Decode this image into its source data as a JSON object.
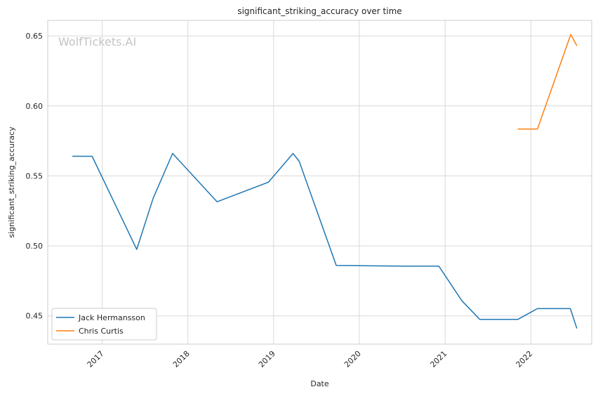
{
  "chart_data": {
    "type": "line",
    "title": "significant_striking_accuracy over time",
    "xlabel": "Date",
    "ylabel": "significant_striking_accuracy",
    "watermark": "WolfTickets.AI",
    "x_axis": {
      "type": "date",
      "range": [
        "2016-05-14",
        "2022-09-17"
      ],
      "ticks": [
        {
          "label": "2017",
          "date": "2017-01-01"
        },
        {
          "label": "2018",
          "date": "2018-01-01"
        },
        {
          "label": "2019",
          "date": "2019-01-01"
        },
        {
          "label": "2020",
          "date": "2020-01-01"
        },
        {
          "label": "2021",
          "date": "2021-01-01"
        },
        {
          "label": "2022",
          "date": "2022-01-01"
        }
      ]
    },
    "y_axis": {
      "range": [
        0.4298,
        0.6611
      ],
      "ticks": [
        {
          "label": "0.45",
          "value": 0.45
        },
        {
          "label": "0.50",
          "value": 0.5
        },
        {
          "label": "0.55",
          "value": 0.55
        },
        {
          "label": "0.60",
          "value": 0.6
        },
        {
          "label": "0.65",
          "value": 0.65
        }
      ]
    },
    "grid": true,
    "legend": {
      "placement": "lower-left"
    },
    "series": [
      {
        "name": "Jack Hermansson",
        "color": "#1f77b4",
        "points": [
          {
            "x": "2016-08-27",
            "y": 0.564
          },
          {
            "x": "2016-11-19",
            "y": 0.564
          },
          {
            "x": "2017-05-28",
            "y": 0.4975
          },
          {
            "x": "2017-08-06",
            "y": 0.534
          },
          {
            "x": "2017-10-28",
            "y": 0.566
          },
          {
            "x": "2018-05-05",
            "y": 0.5315
          },
          {
            "x": "2018-12-10",
            "y": 0.5455
          },
          {
            "x": "2019-03-25",
            "y": 0.566
          },
          {
            "x": "2019-04-20",
            "y": 0.5605
          },
          {
            "x": "2019-09-25",
            "y": 0.486
          },
          {
            "x": "2020-07-25",
            "y": 0.4855
          },
          {
            "x": "2020-12-05",
            "y": 0.4855
          },
          {
            "x": "2021-03-13",
            "y": 0.4608
          },
          {
            "x": "2021-05-28",
            "y": 0.4475
          },
          {
            "x": "2021-11-07",
            "y": 0.4475
          },
          {
            "x": "2022-01-29",
            "y": 0.4552
          },
          {
            "x": "2022-06-18",
            "y": 0.4552
          },
          {
            "x": "2022-07-16",
            "y": 0.441
          }
        ]
      },
      {
        "name": "Chris Curtis",
        "color": "#ff7f0e",
        "points": [
          {
            "x": "2021-11-06",
            "y": 0.5835
          },
          {
            "x": "2022-01-29",
            "y": 0.5835
          },
          {
            "x": "2022-06-20",
            "y": 0.651
          },
          {
            "x": "2022-07-16",
            "y": 0.643
          }
        ]
      }
    ]
  }
}
